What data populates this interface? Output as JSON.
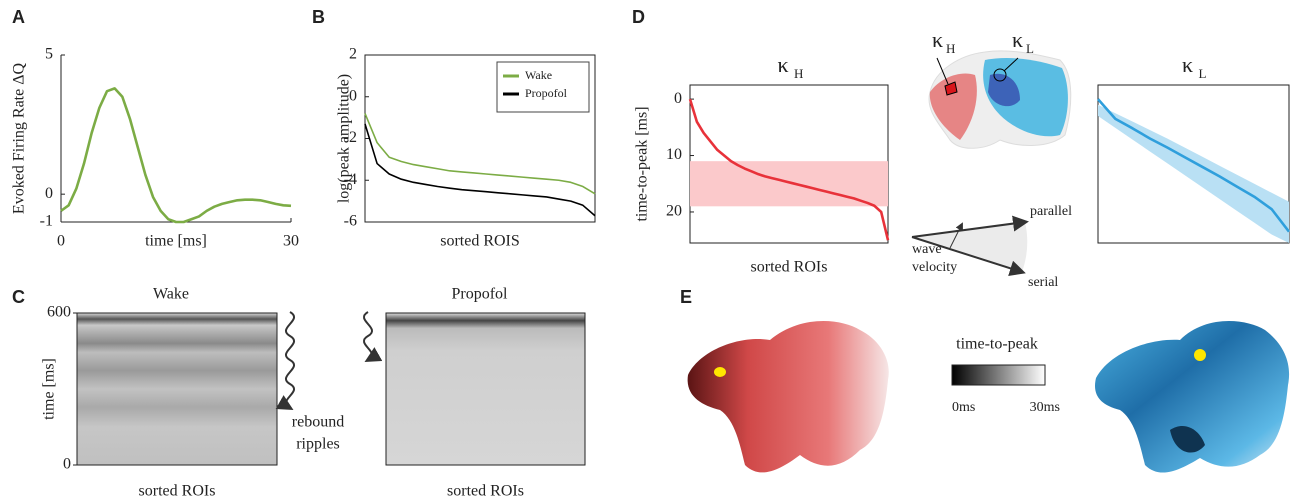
{
  "panel_letters": [
    "A",
    "B",
    "C",
    "D",
    "E"
  ],
  "chart_data": [
    {
      "type": "line",
      "ylabel": "Evoked Firing Rate ΔQ",
      "xlabel": "time [ms]",
      "frame": false,
      "x": [
        0,
        1,
        2,
        3,
        4,
        5,
        6,
        7,
        8,
        9,
        10,
        11,
        12,
        13,
        14,
        15,
        16,
        17,
        18,
        19,
        20,
        21,
        22,
        23,
        24,
        25,
        26,
        27,
        28,
        29,
        30
      ],
      "values": [
        -0.6,
        -0.4,
        0.2,
        1.1,
        2.2,
        3.1,
        3.7,
        3.8,
        3.5,
        2.7,
        1.7,
        0.7,
        -0.1,
        -0.6,
        -0.9,
        -1.0,
        -1.0,
        -0.9,
        -0.8,
        -0.6,
        -0.45,
        -0.35,
        -0.28,
        -0.22,
        -0.2,
        -0.2,
        -0.22,
        -0.28,
        -0.35,
        -0.4,
        -0.42
      ],
      "color": "#7cac45",
      "xlim": [
        0,
        30
      ],
      "xticks": [
        0,
        30
      ],
      "ylim": [
        -1,
        5
      ],
      "yticks": [
        5,
        0,
        -1
      ]
    },
    {
      "type": "line",
      "ylabel": "log(peak amplitude)",
      "xlabel": "sorted ROIS",
      "frame": true,
      "legend": "upper right",
      "ylim": [
        -6,
        2
      ],
      "yticks": [
        2,
        0,
        -2,
        -4,
        -6
      ],
      "series": [
        {
          "name": "Wake",
          "color": "#7cac45",
          "values": [
            -0.8,
            -2.2,
            -2.9,
            -3.1,
            -3.25,
            -3.35,
            -3.45,
            -3.55,
            -3.6,
            -3.65,
            -3.7,
            -3.75,
            -3.8,
            -3.85,
            -3.9,
            -3.95,
            -4.0,
            -4.1,
            -4.3,
            -4.65
          ]
        },
        {
          "name": "Propofol",
          "color": "#000000",
          "values": [
            -1.3,
            -3.2,
            -3.7,
            -3.95,
            -4.1,
            -4.2,
            -4.3,
            -4.38,
            -4.45,
            -4.5,
            -4.55,
            -4.6,
            -4.65,
            -4.7,
            -4.75,
            -4.8,
            -4.9,
            -5.0,
            -5.2,
            -5.7
          ]
        }
      ]
    },
    {
      "type": "heatmap",
      "title": "Wake",
      "ylabel": "time [ms]",
      "xlabel": "sorted ROIs",
      "ylim": [
        0,
        600
      ],
      "yticks": [
        0,
        600
      ]
    },
    {
      "type": "heatmap",
      "title": "Propofol",
      "xlabel": "sorted ROIs"
    },
    {
      "type": "line",
      "title": "κ",
      "title_sub": "H",
      "ylabel": "time-to-peak [ms]",
      "xlabel": "sorted ROIs",
      "frame": true,
      "inverted": true,
      "ylim": [
        -2.5,
        25.5
      ],
      "yticks": [
        0,
        10,
        20
      ],
      "color": "#e8323a",
      "values": [
        0,
        4,
        6,
        7.5,
        9,
        10,
        11,
        11.7,
        12.3,
        12.8,
        13.3,
        13.7,
        14,
        14.3,
        14.6,
        14.9,
        15.2,
        15.5,
        15.8,
        16.1,
        16.4,
        16.7,
        17,
        17.3,
        17.6,
        18,
        18.4,
        18.9,
        20,
        25
      ],
      "band": [
        11,
        19
      ],
      "band_color": "#fbc9cb"
    },
    {
      "type": "line",
      "title": "κ",
      "title_sub": "L",
      "frame": true,
      "inverted": true,
      "ylim": [
        -2.5,
        25.5
      ],
      "color": "#2f9fdc",
      "values": [
        0,
        3.5,
        5.2,
        7,
        8.6,
        10.3,
        12,
        13.7,
        15.5,
        17.3,
        19.5,
        23.5
      ],
      "band_lower": [
        1,
        2.5,
        4,
        5.5,
        7,
        8.6,
        10.2,
        11.8,
        13.4,
        15,
        16.6,
        18.2
      ],
      "band_upper": [
        3,
        5.1,
        7.2,
        9.3,
        11.4,
        13.5,
        15.6,
        17.7,
        19.8,
        21.9,
        24,
        25.5
      ],
      "band_color": "#b9e0f4"
    }
  ],
  "annotations": {
    "rebound": "rebound",
    "ripples": "ripples",
    "map_kh": "κ",
    "map_kh_sub": "H",
    "map_kl": "κ",
    "map_kl_sub": "L",
    "parallel": "parallel",
    "wave": "wave",
    "velocity": "velocity",
    "serial": "serial",
    "colorbar_title": "time-to-peak",
    "colorbar_min": "0ms",
    "colorbar_max": "30ms"
  }
}
